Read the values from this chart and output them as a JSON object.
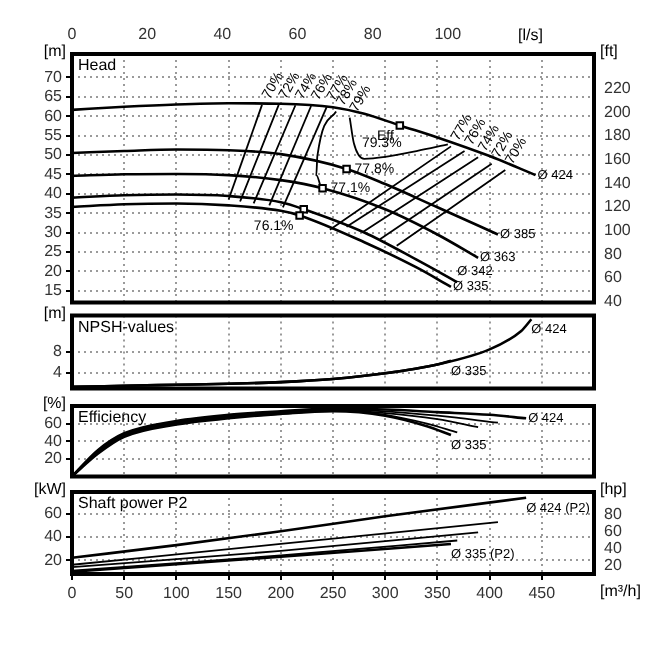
{
  "chart_data": [
    {
      "type": "line",
      "title": "Head",
      "ylabel": "[m]",
      "y2label": "[ft]",
      "x2label": "[l/s]",
      "xlim": [
        0,
        500
      ],
      "xticks": [
        0,
        50,
        100,
        150,
        200,
        250,
        300,
        350,
        400,
        450
      ],
      "x2lim": [
        0,
        138.9
      ],
      "x2ticks": [
        0,
        20,
        40,
        60,
        80,
        100
      ],
      "ylim": [
        12,
        76
      ],
      "yticks": [
        15,
        20,
        25,
        30,
        35,
        40,
        45,
        50,
        55,
        60,
        65,
        70
      ],
      "y2lim": [
        39.4,
        249.3
      ],
      "y2ticks": [
        40,
        60,
        80,
        100,
        120,
        140,
        160,
        180,
        200,
        220
      ],
      "grid": true,
      "tick_labels": "y",
      "marker": "none",
      "series": [
        {
          "name": "Ø 424",
          "color": "#000000",
          "x": [
            0,
            50,
            100,
            150,
            200,
            250,
            280,
            314,
            350,
            400,
            444
          ],
          "values": [
            61.6,
            62.4,
            63,
            63.3,
            63.2,
            62.3,
            60.6,
            57.6,
            54.5,
            49.7,
            44.8
          ]
        },
        {
          "name": "Ø 385",
          "color": "#000000",
          "x": [
            0,
            50,
            100,
            150,
            200,
            263,
            300,
            350,
            408
          ],
          "values": [
            50.5,
            51,
            51.4,
            51.2,
            50.2,
            46.4,
            42.5,
            36.5,
            29.5
          ]
        },
        {
          "name": "Ø 363",
          "color": "#000000",
          "x": [
            0,
            50,
            100,
            150,
            200,
            240,
            300,
            350,
            389
          ],
          "values": [
            44.6,
            45,
            45.1,
            44.8,
            43.5,
            41.4,
            36,
            29.5,
            23.5
          ]
        },
        {
          "name": "Ø 342",
          "color": "#000000",
          "x": [
            0,
            50,
            100,
            150,
            200,
            222,
            280,
            330,
            369
          ],
          "values": [
            39,
            39.6,
            39.8,
            39.4,
            37.8,
            36,
            30,
            23,
            17.2
          ]
        },
        {
          "name": "Ø 335",
          "color": "#000000",
          "x": [
            0,
            50,
            100,
            150,
            200,
            218,
            280,
            330,
            363
          ],
          "values": [
            36.6,
            37.3,
            37.5,
            37,
            35.6,
            34.4,
            27.5,
            21,
            16
          ]
        },
        {
          "color": "#000000",
          "x": [
            182,
            150
          ],
          "values": [
            62.9,
            38.5
          ]
        },
        {
          "color": "#000000",
          "x": [
            198,
            161
          ],
          "values": [
            62.9,
            38
          ]
        },
        {
          "color": "#000000",
          "x": [
            214,
            174
          ],
          "values": [
            62.8,
            37.5
          ]
        },
        {
          "color": "#000000",
          "x": [
            229,
            189
          ],
          "values": [
            62.6,
            37
          ]
        },
        {
          "color": "#000000",
          "x": [
            244,
            202
          ],
          "values": [
            62.4,
            36.5
          ]
        },
        {
          "color": "#000000",
          "x": [
            253,
            235,
            234,
            239
          ],
          "values": [
            61.2,
            49.7,
            44.8,
            41
          ]
        },
        {
          "color": "#000000",
          "x": [
            266,
            270,
            280,
            300,
            330,
            360
          ],
          "values": [
            59.6,
            53,
            49,
            49.5,
            51,
            52.7
          ]
        },
        {
          "color": "#000000",
          "x": [
            363,
            247
          ],
          "values": [
            52.2,
            30.7
          ]
        },
        {
          "color": "#000000",
          "x": [
            376,
            263
          ],
          "values": [
            51,
            31.5
          ]
        },
        {
          "color": "#000000",
          "x": [
            389,
            279
          ],
          "values": [
            49.4,
            30.2
          ]
        },
        {
          "color": "#000000",
          "x": [
            402,
            295
          ],
          "values": [
            47.7,
            28.3
          ]
        },
        {
          "color": "#000000",
          "x": [
            415,
            311
          ],
          "values": [
            46.1,
            26.6
          ]
        },
        {
          "type": "scatter",
          "marker": "square",
          "color": "#000000",
          "x": [
            314,
            263,
            240,
            222,
            218
          ],
          "values": [
            57.6,
            46.4,
            41.4,
            36,
            34.4
          ]
        }
      ],
      "annotations": [
        {
          "text": "Eff",
          "x": 314,
          "y": 57.6
        },
        {
          "text": "79.3%",
          "x": 270,
          "y": 53
        },
        {
          "text": "77.8%",
          "x": 263,
          "y": 46.4
        },
        {
          "text": "77.1%",
          "x": 240,
          "y": 41.4
        },
        {
          "text": "76.1%",
          "x": 218,
          "y": 34.4
        },
        {
          "text": "70%",
          "x": 182,
          "y": 62.9
        },
        {
          "text": "72%",
          "x": 198,
          "y": 62.9
        },
        {
          "text": "74%",
          "x": 214,
          "y": 62.8
        },
        {
          "text": "76%",
          "x": 229,
          "y": 62.6
        },
        {
          "text": "77%",
          "x": 244,
          "y": 62.4
        },
        {
          "text": "78%",
          "x": 253,
          "y": 61.2
        },
        {
          "text": "79%",
          "x": 266,
          "y": 59.6
        },
        {
          "text": "77%",
          "x": 363,
          "y": 52.2
        },
        {
          "text": "76%",
          "x": 376,
          "y": 51
        },
        {
          "text": "74%",
          "x": 389,
          "y": 49.4
        },
        {
          "text": "72%",
          "x": 402,
          "y": 47.7
        },
        {
          "text": "70%",
          "x": 415,
          "y": 46.1
        }
      ]
    },
    {
      "type": "line",
      "title": "NPSH-values",
      "ylabel": "[m]",
      "xlim": [
        0,
        500
      ],
      "xticks": [
        0,
        50,
        100,
        150,
        200,
        250,
        300,
        350,
        400,
        450
      ],
      "ylim": [
        1,
        15
      ],
      "yticks": [
        4,
        8
      ],
      "grid": true,
      "tick_labels": "y",
      "marker": "none",
      "series": [
        {
          "name": "Ø 424",
          "color": "#000000",
          "x": [
            0,
            50,
            100,
            150,
            200,
            250,
            300,
            350,
            400,
            430,
            440
          ],
          "values": [
            1.3,
            1.5,
            1.7,
            1.9,
            2.2,
            2.8,
            3.9,
            5.6,
            8.5,
            12,
            14.3
          ]
        },
        {
          "name": "Ø 335",
          "color": "#000000",
          "x": [
            0,
            50,
            100,
            150,
            200,
            250,
            300,
            350,
            363
          ],
          "values": [
            1.3,
            1.5,
            1.7,
            1.9,
            2.2,
            2.8,
            3.9,
            5.6,
            6.3
          ]
        }
      ]
    },
    {
      "type": "line",
      "title": "Efficiency",
      "ylabel": "[%]",
      "xlim": [
        0,
        500
      ],
      "xticks": [
        0,
        50,
        100,
        150,
        200,
        250,
        300,
        350,
        400,
        450
      ],
      "ylim": [
        0,
        80
      ],
      "yticks": [
        20,
        40,
        60
      ],
      "grid": true,
      "tick_labels": "y",
      "marker": "none",
      "series": [
        {
          "name": "Ø 424",
          "color": "#000000",
          "x": [
            0,
            25,
            50,
            100,
            150,
            200,
            250,
            300,
            350,
            400,
            435
          ],
          "values": [
            0,
            30,
            49,
            63,
            70,
            74,
            77,
            76,
            73,
            70,
            66
          ]
        },
        {
          "color": "#000000",
          "x": [
            0,
            25,
            50,
            100,
            150,
            200,
            250,
            300,
            350,
            408
          ],
          "values": [
            0,
            29,
            48,
            62,
            69,
            73,
            76,
            74,
            69,
            61
          ]
        },
        {
          "color": "#000000",
          "x": [
            0,
            25,
            50,
            100,
            150,
            200,
            250,
            300,
            350,
            389
          ],
          "values": [
            0,
            28,
            47,
            61,
            68,
            72,
            75,
            72,
            65,
            56
          ]
        },
        {
          "color": "#000000",
          "x": [
            0,
            25,
            50,
            100,
            150,
            200,
            250,
            300,
            340,
            369
          ],
          "values": [
            0,
            27,
            46,
            60,
            67,
            71,
            75,
            70,
            60,
            50
          ]
        },
        {
          "name": "Ø 335",
          "color": "#000000",
          "x": [
            0,
            25,
            50,
            100,
            150,
            200,
            250,
            300,
            340,
            363
          ],
          "values": [
            0,
            26,
            45,
            59,
            66,
            71,
            74,
            69,
            57,
            47
          ]
        }
      ]
    },
    {
      "type": "line",
      "title": "Shaft power P2",
      "ylabel": "[kW]",
      "y2label": "[hp]",
      "xlabel": "[m³/h]",
      "xlim": [
        0,
        500
      ],
      "xticks": [
        0,
        50,
        100,
        150,
        200,
        250,
        300,
        350,
        400,
        450
      ],
      "ylim": [
        8,
        79
      ],
      "yticks": [
        20,
        40,
        60
      ],
      "y2lim": [
        10.7,
        105.9
      ],
      "y2ticks": [
        20,
        40,
        60,
        80
      ],
      "grid": true,
      "marker": "none",
      "series": [
        {
          "name": "Ø 424 (P2)",
          "color": "#000000",
          "x": [
            0,
            100,
            200,
            300,
            435
          ],
          "values": [
            22,
            33,
            45,
            58,
            74
          ]
        },
        {
          "color": "#000000",
          "x": [
            0,
            200,
            408
          ],
          "values": [
            16,
            34,
            53
          ]
        },
        {
          "color": "#000000",
          "x": [
            0,
            200,
            389
          ],
          "values": [
            14,
            28,
            44
          ]
        },
        {
          "color": "#000000",
          "x": [
            0,
            200,
            369
          ],
          "values": [
            11,
            24,
            37
          ]
        },
        {
          "name": "Ø 335 (P2)",
          "color": "#000000",
          "x": [
            0,
            200,
            363
          ],
          "values": [
            10,
            23,
            34
          ]
        }
      ]
    }
  ]
}
